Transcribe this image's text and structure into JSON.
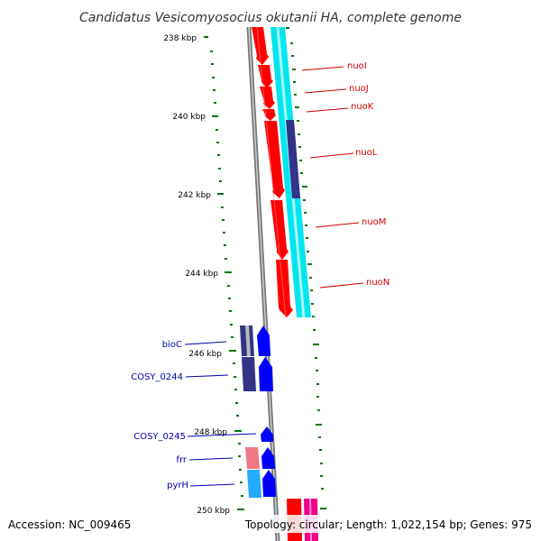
{
  "title": "Candidatus Vesicomyosocius okutanii HA, complete genome",
  "ticks": [
    {
      "label": "238 kbp",
      "kbp": 238
    },
    {
      "label": "240 kbp",
      "kbp": 240
    },
    {
      "label": "242 kbp",
      "kbp": 242
    },
    {
      "label": "244 kbp",
      "kbp": 244
    },
    {
      "label": "246 kbp",
      "kbp": 246
    },
    {
      "label": "248 kbp",
      "kbp": 248
    },
    {
      "label": "250 kbp",
      "kbp": 250
    }
  ],
  "genes": [
    {
      "name": "nuoI",
      "color": "#cc0000"
    },
    {
      "name": "nuoJ",
      "color": "#cc0000"
    },
    {
      "name": "nuoK",
      "color": "#cc0000"
    },
    {
      "name": "nuoL",
      "color": "#cc0000"
    },
    {
      "name": "nuoM",
      "color": "#cc0000"
    },
    {
      "name": "nuoN",
      "color": "#cc0000"
    },
    {
      "name": "bioC",
      "color": "#0000aa"
    },
    {
      "name": "COSY_0244",
      "color": "#0000aa"
    },
    {
      "name": "COSY_0245",
      "color": "#0000aa"
    },
    {
      "name": "frr",
      "color": "#0000aa"
    },
    {
      "name": "pyrH",
      "color": "#0000aa"
    }
  ],
  "colors": {
    "forward_cds": "#ff0000",
    "forward_feature": "#00e5ee",
    "reverse_cds": "#0000ff",
    "reverse_feature": "#333388",
    "backbone": "#888888",
    "gc_skew": "#007700",
    "light_feature": "#ee7788",
    "light_blue": "#22aaff",
    "magenta": "#ee0088"
  },
  "footer": {
    "accession": "Accession: NC_009465",
    "topology": "Topology: circular; Length: 1,022,154 bp; Genes: 975"
  }
}
